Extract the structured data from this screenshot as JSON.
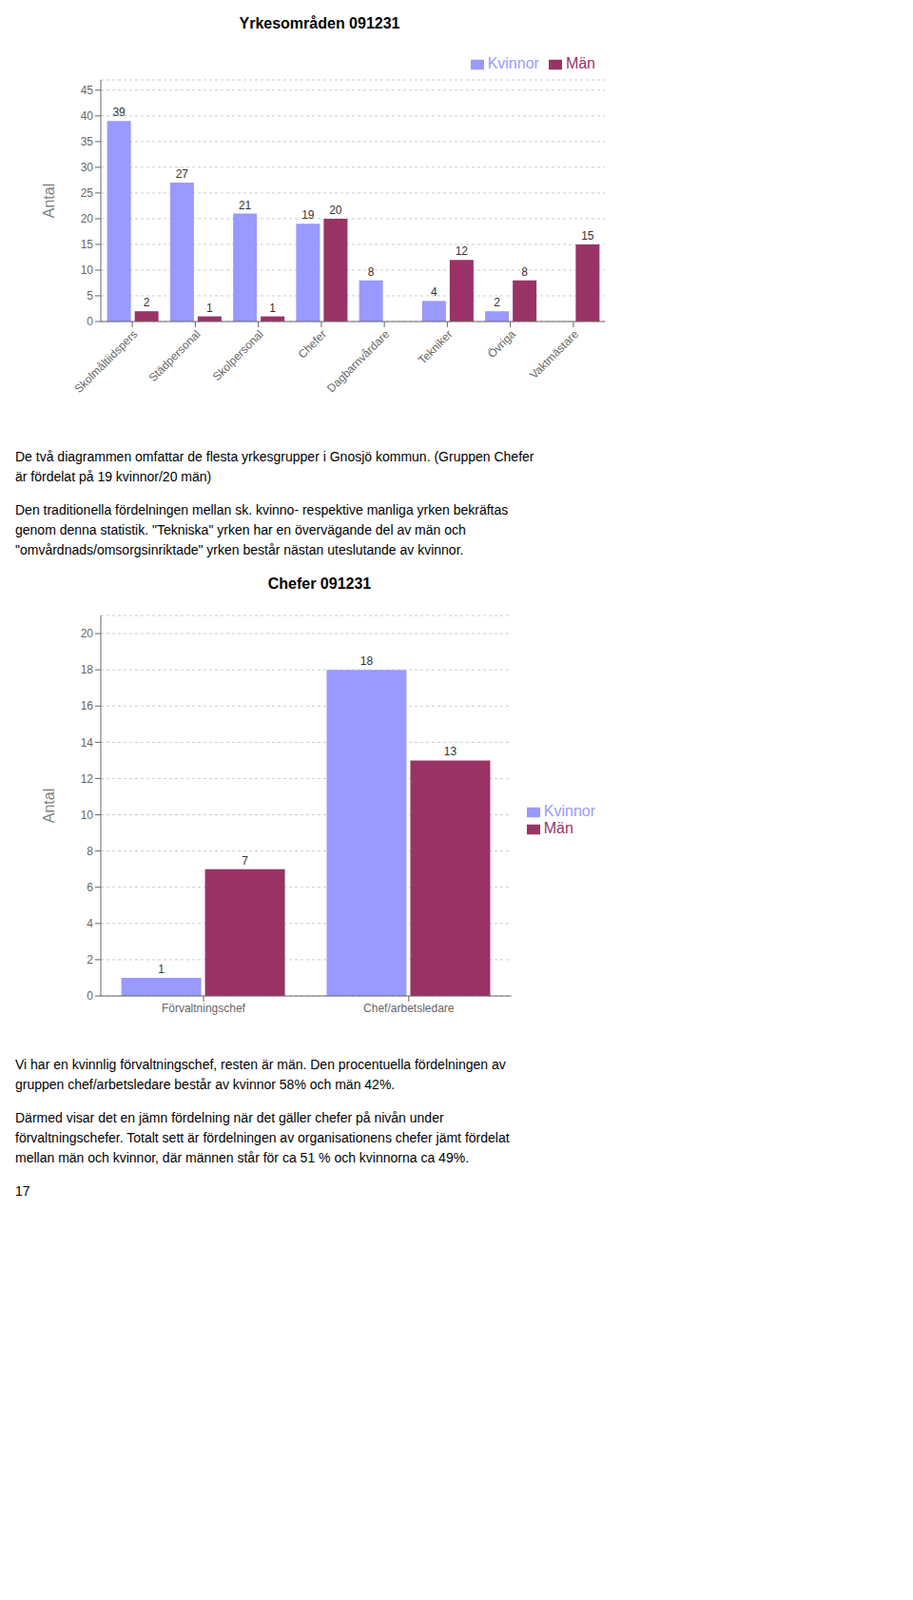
{
  "chart_data": [
    {
      "type": "bar",
      "title": "Yrkesområden 091231",
      "categories": [
        "Skolmåltiidspers",
        "Städpersonal",
        "Skolpersonal",
        "Chefer",
        "Dagbarnvårdare",
        "Tekniker",
        "Övriga",
        "Vaktmästare"
      ],
      "series": [
        {
          "name": "Kvinnor",
          "color": "#9999ff",
          "values": [
            39,
            27,
            21,
            19,
            8,
            4,
            2,
            0
          ]
        },
        {
          "name": "Män",
          "color": "#993366",
          "values": [
            2,
            1,
            1,
            20,
            0,
            12,
            8,
            15
          ]
        }
      ],
      "ylabel": "Antal",
      "ylim": [
        0,
        47
      ],
      "yticks": [
        0,
        5,
        10,
        15,
        20,
        25,
        30,
        35,
        40,
        45
      ],
      "grid": true,
      "legend": "upper right",
      "data_labels": true,
      "annotations": [
        [
          "De två diagrammen omfattar de flesta yrkesgrupper i Gnosjö kommun. (Gruppen Chefer",
          "är fördelat på 19 kvinnor/20 män)"
        ],
        [
          "Den traditionella fördelningen mellan sk. kvinno- respektive manliga yrken bekräftas",
          "genom denna statistik. \"Tekniska\" yrken har en övervägande del av män och",
          "\"omvårdnads/omsorgsinriktade\" yrken består nästan uteslutande av kvinnor."
        ]
      ]
    },
    {
      "type": "bar",
      "title": "Chefer 091231",
      "categories": [
        "Förvaltningschef",
        "Chef/arbetsledare"
      ],
      "series": [
        {
          "name": "Kvinnor",
          "color": "#9999ff",
          "values": [
            1,
            18
          ]
        },
        {
          "name": "Män",
          "color": "#993366",
          "values": [
            7,
            13
          ]
        }
      ],
      "ylabel": "Antal",
      "ylim": [
        0,
        21
      ],
      "yticks": [
        0,
        2,
        4,
        6,
        8,
        10,
        12,
        14,
        16,
        18,
        20
      ],
      "grid": true,
      "legend": "right",
      "data_labels": true,
      "annotations": [
        [
          "Vi har en kvinnlig förvaltningschef, resten är män. Den procentuella fördelningen av",
          "gruppen chef/arbetsledare består av kvinnor 58% och män 42%."
        ],
        [
          "Därmed visar det en jämn fördelning när det gäller chefer på nivån under",
          "förvaltningschefer. Totalt sett är fördelningen av organisationens chefer jämt fördelat",
          "mellan män och kvinnor, där männen står för ca 51 % och kvinnorna ca 49%."
        ],
        [
          "17"
        ]
      ]
    }
  ]
}
